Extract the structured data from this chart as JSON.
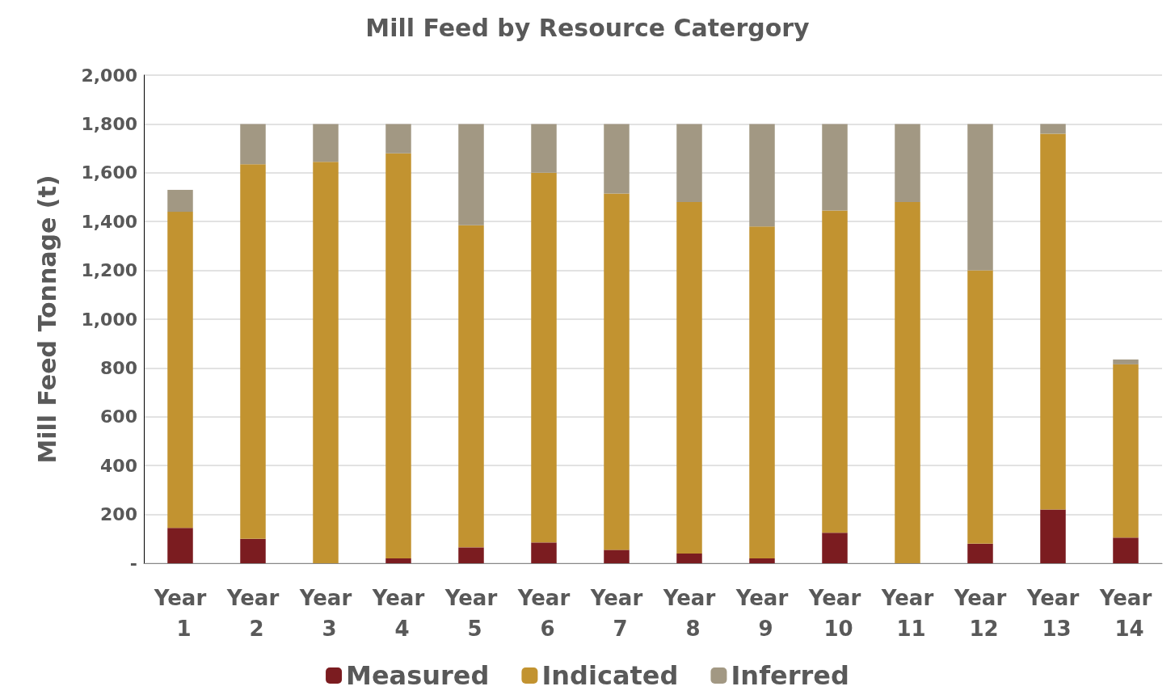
{
  "chart_data": {
    "type": "bar",
    "title": "Mill Feed by Resource Catergory",
    "ylabel": "Mill Feed Tonnage (t)",
    "stacked": true,
    "grid": "y",
    "legend": "bottom",
    "categories": [
      "Year 1",
      "Year 2",
      "Year 3",
      "Year 4",
      "Year 5",
      "Year 6",
      "Year 7",
      "Year 8",
      "Year 9",
      "Year 10",
      "Year 11",
      "Year 12",
      "Year 13",
      "Year 14"
    ],
    "series": [
      {
        "name": "Measured",
        "color": "#7b1c20",
        "values": [
          145,
          100,
          0,
          20,
          65,
          85,
          55,
          40,
          20,
          125,
          0,
          80,
          220,
          105
        ]
      },
      {
        "name": "Indicated",
        "color": "#c29330",
        "values": [
          1295,
          1535,
          1645,
          1660,
          1320,
          1515,
          1460,
          1440,
          1360,
          1320,
          1480,
          1120,
          1540,
          710
        ]
      },
      {
        "name": "Inferred",
        "color": "#a29883",
        "values": [
          90,
          165,
          155,
          120,
          415,
          200,
          285,
          320,
          420,
          355,
          320,
          600,
          40,
          20
        ]
      }
    ],
    "ylim": [
      0,
      2000
    ],
    "yticks": [
      {
        "value": 0,
        "label": "-"
      },
      200,
      400,
      600,
      800,
      {
        "value": 1000,
        "label": "1,000"
      },
      {
        "value": 1200,
        "label": "1,200"
      },
      {
        "value": 1400,
        "label": "1,400"
      },
      {
        "value": 1600,
        "label": "1,600"
      },
      {
        "value": 1800,
        "label": "1,800"
      },
      {
        "value": 2000,
        "label": "2,000"
      }
    ]
  }
}
